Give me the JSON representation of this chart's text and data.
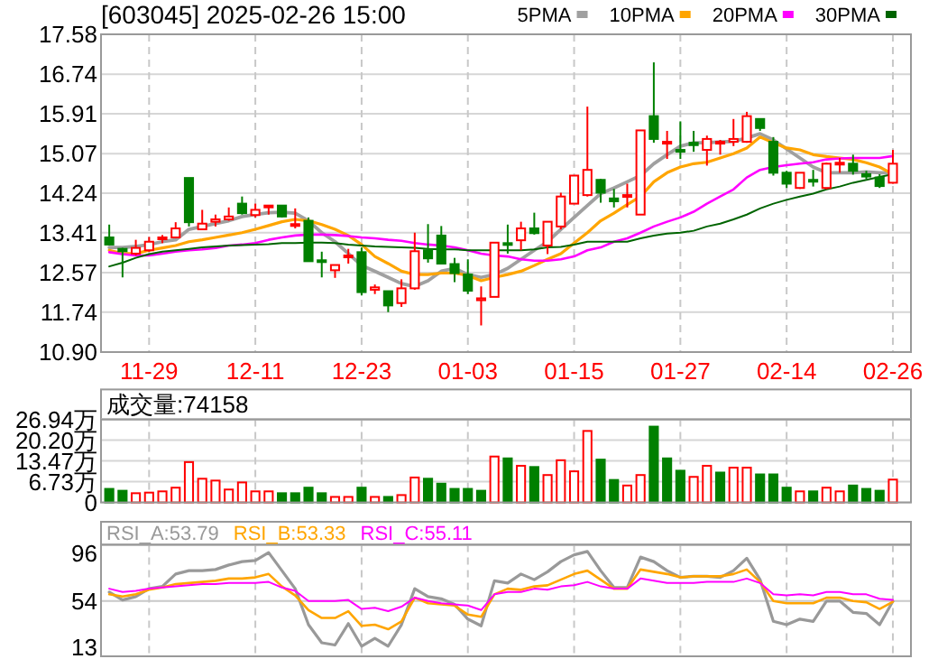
{
  "chart_data": [
    {
      "type": "candlestick",
      "title": "[603045] 2025-02-26 15:00",
      "categories": [
        null,
        null,
        null,
        "11-29",
        null,
        null,
        null,
        null,
        null,
        null,
        null,
        "12-11",
        null,
        null,
        null,
        null,
        null,
        null,
        null,
        "12-23",
        null,
        null,
        null,
        null,
        null,
        null,
        null,
        "01-03",
        null,
        null,
        null,
        null,
        null,
        null,
        null,
        "01-15",
        null,
        null,
        null,
        null,
        null,
        null,
        null,
        "01-27",
        null,
        null,
        null,
        null,
        null,
        null,
        null,
        "02-14",
        null,
        null,
        null,
        null,
        null,
        null,
        null,
        "02-26"
      ],
      "ohlc": [
        [
          13.31,
          13.58,
          13.14,
          13.16
        ],
        [
          13.07,
          13.09,
          12.47,
          13.02
        ],
        [
          12.97,
          13.26,
          12.93,
          13.09
        ],
        [
          13.04,
          13.32,
          13.01,
          13.22
        ],
        [
          13.29,
          13.36,
          13.19,
          13.31
        ],
        [
          13.31,
          13.63,
          13.29,
          13.5
        ],
        [
          14.56,
          14.56,
          13.54,
          13.63
        ],
        [
          13.48,
          13.89,
          13.48,
          13.6
        ],
        [
          13.64,
          13.79,
          13.54,
          13.69
        ],
        [
          13.69,
          13.94,
          13.66,
          13.75
        ],
        [
          14.02,
          14.17,
          13.79,
          13.82
        ],
        [
          13.78,
          14.02,
          13.73,
          13.89
        ],
        [
          13.95,
          13.98,
          13.79,
          13.98
        ],
        [
          13.98,
          13.98,
          13.73,
          13.75
        ],
        [
          13.56,
          13.92,
          13.5,
          13.59
        ],
        [
          13.66,
          13.73,
          12.81,
          12.81
        ],
        [
          12.83,
          13.01,
          12.47,
          12.8
        ],
        [
          12.62,
          12.73,
          12.46,
          12.73
        ],
        [
          12.9,
          13.07,
          12.76,
          12.93
        ],
        [
          13.0,
          13.1,
          12.09,
          12.16
        ],
        [
          12.21,
          12.32,
          12.12,
          12.26
        ],
        [
          12.18,
          12.19,
          11.74,
          11.88
        ],
        [
          11.93,
          12.43,
          11.85,
          12.24
        ],
        [
          12.24,
          13.41,
          12.21,
          13.02
        ],
        [
          13.04,
          13.59,
          12.78,
          12.87
        ],
        [
          13.35,
          13.55,
          12.76,
          12.76
        ],
        [
          12.75,
          12.88,
          12.37,
          12.56
        ],
        [
          12.53,
          12.85,
          12.12,
          12.19
        ],
        [
          11.99,
          12.28,
          11.46,
          12.03
        ],
        [
          12.06,
          13.2,
          12.06,
          13.2
        ],
        [
          13.19,
          13.58,
          12.97,
          13.16
        ],
        [
          13.25,
          13.64,
          13.04,
          13.5
        ],
        [
          13.5,
          13.83,
          13.37,
          13.4
        ],
        [
          13.14,
          13.64,
          12.96,
          13.64
        ],
        [
          13.54,
          14.25,
          13.48,
          14.17
        ],
        [
          14.02,
          14.61,
          14.02,
          14.61
        ],
        [
          14.2,
          16.06,
          14.17,
          14.73
        ],
        [
          14.52,
          14.54,
          14.04,
          14.25
        ],
        [
          14.13,
          14.33,
          13.94,
          14.07
        ],
        [
          14.17,
          14.44,
          13.94,
          14.2
        ],
        [
          13.79,
          15.56,
          13.79,
          15.56
        ],
        [
          15.86,
          16.99,
          15.3,
          15.38
        ],
        [
          15.3,
          15.55,
          14.96,
          15.32
        ],
        [
          15.15,
          15.75,
          14.96,
          15.12
        ],
        [
          15.3,
          15.55,
          15.11,
          15.25
        ],
        [
          15.15,
          15.45,
          14.82,
          15.38
        ],
        [
          15.3,
          15.36,
          15.05,
          15.32
        ],
        [
          15.32,
          15.8,
          15.23,
          15.38
        ],
        [
          15.32,
          15.95,
          15.3,
          15.86
        ],
        [
          15.8,
          15.8,
          15.55,
          15.61
        ],
        [
          15.32,
          15.42,
          14.61,
          14.67
        ],
        [
          14.67,
          14.71,
          14.35,
          14.44
        ],
        [
          14.35,
          14.67,
          14.33,
          14.67
        ],
        [
          14.52,
          14.73,
          14.38,
          14.49
        ],
        [
          14.35,
          14.88,
          14.32,
          14.86
        ],
        [
          14.86,
          14.98,
          14.67,
          14.88
        ],
        [
          14.86,
          15.05,
          14.63,
          14.71
        ],
        [
          14.64,
          14.71,
          14.54,
          14.59
        ],
        [
          14.57,
          14.64,
          14.35,
          14.39
        ],
        [
          14.46,
          15.15,
          14.44,
          14.86
        ]
      ],
      "colors": [
        "#008000",
        "#008000",
        "#ff0000",
        "#ff0000",
        "#ff0000",
        "#ff0000",
        "#008000",
        "#ff0000",
        "#ff0000",
        "#ff0000",
        "#008000",
        "#ff0000",
        "#ff0000",
        "#008000",
        "#ff0000",
        "#008000",
        "#008000",
        "#ff0000",
        "#ff0000",
        "#008000",
        "#ff0000",
        "#008000",
        "#ff0000",
        "#ff0000",
        "#008000",
        "#008000",
        "#008000",
        "#008000",
        "#ff0000",
        "#ff0000",
        "#008000",
        "#ff0000",
        "#008000",
        "#ff0000",
        "#ff0000",
        "#ff0000",
        "#ff0000",
        "#008000",
        "#008000",
        "#ff0000",
        "#ff0000",
        "#008000",
        "#ff0000",
        "#008000",
        "#008000",
        "#ff0000",
        "#ff0000",
        "#ff0000",
        "#ff0000",
        "#008000",
        "#008000",
        "#008000",
        "#ff0000",
        "#008000",
        "#ff0000",
        "#ff0000",
        "#008000",
        "#008000",
        "#008000",
        "#ff0000"
      ],
      "series": [
        {
          "name": "5PMA",
          "type": "line",
          "color": "#a0a0a0",
          "values": [
            13.1,
            13.1,
            13.12,
            13.16,
            13.22,
            13.26,
            13.48,
            13.54,
            13.6,
            13.66,
            13.75,
            13.79,
            13.83,
            13.84,
            13.82,
            13.66,
            13.41,
            13.22,
            12.97,
            12.72,
            12.6,
            12.47,
            12.34,
            12.28,
            12.4,
            12.6,
            12.66,
            12.53,
            12.47,
            12.53,
            12.66,
            12.85,
            13.04,
            13.22,
            13.48,
            13.73,
            13.98,
            14.23,
            14.35,
            14.48,
            14.61,
            14.86,
            15.05,
            15.23,
            15.3,
            15.3,
            15.32,
            15.33,
            15.4,
            15.49,
            15.36,
            15.17,
            14.98,
            14.79,
            14.67,
            14.67,
            14.67,
            14.69,
            14.67,
            14.67
          ]
        },
        {
          "name": "10PMA",
          "type": "line",
          "color": "#ffa500",
          "values": [
            13.04,
            12.97,
            12.97,
            13.04,
            13.09,
            13.14,
            13.22,
            13.26,
            13.31,
            13.36,
            13.41,
            13.48,
            13.56,
            13.64,
            13.69,
            13.66,
            13.58,
            13.48,
            13.35,
            13.16,
            12.91,
            12.76,
            12.6,
            12.53,
            12.53,
            12.56,
            12.56,
            12.51,
            12.4,
            12.47,
            12.53,
            12.6,
            12.72,
            12.85,
            12.97,
            13.19,
            13.41,
            13.66,
            13.82,
            14.0,
            14.17,
            14.48,
            14.67,
            14.79,
            14.86,
            14.89,
            14.98,
            15.07,
            15.19,
            15.42,
            15.3,
            15.19,
            15.15,
            15.05,
            15.01,
            14.98,
            14.95,
            14.88,
            14.79,
            14.64
          ]
        },
        {
          "name": "20PMA",
          "type": "line",
          "color": "#ff00ff",
          "values": [
            13.0,
            12.96,
            12.93,
            12.93,
            12.97,
            13.01,
            13.04,
            13.06,
            13.09,
            13.14,
            13.16,
            13.19,
            13.26,
            13.31,
            13.35,
            13.37,
            13.37,
            13.36,
            13.34,
            13.31,
            13.29,
            13.26,
            13.24,
            13.19,
            13.16,
            13.14,
            13.1,
            13.04,
            12.97,
            12.93,
            12.91,
            12.85,
            12.82,
            12.82,
            12.85,
            12.91,
            13.04,
            13.1,
            13.22,
            13.29,
            13.41,
            13.54,
            13.64,
            13.73,
            13.85,
            14.02,
            14.17,
            14.32,
            14.57,
            14.73,
            14.79,
            14.83,
            14.86,
            14.89,
            14.95,
            14.97,
            14.98,
            14.98,
            14.98,
            15.02
          ]
        },
        {
          "name": "30PMA",
          "type": "line",
          "color": "#006400",
          "values": [
            12.7,
            12.78,
            12.88,
            12.96,
            13.01,
            13.04,
            13.07,
            13.1,
            13.12,
            13.14,
            13.15,
            13.16,
            13.17,
            13.19,
            13.19,
            13.2,
            13.2,
            13.19,
            13.16,
            13.14,
            13.12,
            13.11,
            13.1,
            13.09,
            13.07,
            13.06,
            13.06,
            13.04,
            13.04,
            13.04,
            13.04,
            13.04,
            13.06,
            13.1,
            13.11,
            13.16,
            13.22,
            13.22,
            13.22,
            13.22,
            13.29,
            13.35,
            13.39,
            13.41,
            13.45,
            13.54,
            13.6,
            13.69,
            13.79,
            13.92,
            14.02,
            14.1,
            14.17,
            14.23,
            14.32,
            14.38,
            14.46,
            14.52,
            14.58,
            14.64
          ]
        }
      ],
      "ylim": [
        10.9,
        17.58
      ],
      "yticks": [
        {
          "value": 10.9,
          "label": "10.90"
        },
        11.74,
        12.57,
        13.41,
        14.24,
        15.07,
        15.91,
        16.74,
        17.58
      ],
      "grid": true,
      "legend": "top right"
    },
    {
      "type": "bar",
      "title": "成交量:74158",
      "categories": [
        null,
        null,
        null,
        null,
        null,
        null,
        null,
        null,
        null,
        null,
        null,
        null,
        null,
        null,
        null,
        null,
        null,
        null,
        null,
        null,
        null,
        null,
        null,
        null,
        null,
        null,
        null,
        null,
        null,
        null,
        null,
        null,
        null,
        null,
        null,
        null,
        null,
        null,
        null,
        null,
        null,
        null,
        null,
        null,
        null,
        null,
        null,
        null,
        null,
        null,
        null,
        null,
        null,
        null,
        null,
        null,
        null,
        null,
        null,
        null
      ],
      "values": [
        4.4,
        3.8,
        3.0,
        3.2,
        3.6,
        4.8,
        13.1,
        7.7,
        7.1,
        4.2,
        6.5,
        3.6,
        3.6,
        3.0,
        3.0,
        4.8,
        3.0,
        1.8,
        1.8,
        4.8,
        1.8,
        1.8,
        2.4,
        8.1,
        7.7,
        6.1,
        4.4,
        4.4,
        3.8,
        14.9,
        14.3,
        11.9,
        11.5,
        8.9,
        13.7,
        10.1,
        23.2,
        13.9,
        7.3,
        5.5,
        8.9,
        24.6,
        14.3,
        10.3,
        8.3,
        11.9,
        9.7,
        11.3,
        11.3,
        9.1,
        9.1,
        4.8,
        3.6,
        3.6,
        4.8,
        3.6,
        5.5,
        4.4,
        3.8,
        7.42
      ],
      "colors": [
        "#008000",
        "#008000",
        "#ff0000",
        "#ff0000",
        "#ff0000",
        "#ff0000",
        "#ff0000",
        "#ff0000",
        "#ff0000",
        "#ff0000",
        "#ff0000",
        "#ff0000",
        "#ff0000",
        "#008000",
        "#008000",
        "#008000",
        "#008000",
        "#ff0000",
        "#ff0000",
        "#008000",
        "#ff0000",
        "#008000",
        "#ff0000",
        "#ff0000",
        "#008000",
        "#008000",
        "#008000",
        "#008000",
        "#008000",
        "#ff0000",
        "#008000",
        "#ff0000",
        "#008000",
        "#ff0000",
        "#ff0000",
        "#ff0000",
        "#ff0000",
        "#008000",
        "#008000",
        "#ff0000",
        "#ff0000",
        "#008000",
        "#008000",
        "#008000",
        "#ff0000",
        "#ff0000",
        "#008000",
        "#ff0000",
        "#ff0000",
        "#008000",
        "#008000",
        "#008000",
        "#ff0000",
        "#008000",
        "#ff0000",
        "#ff0000",
        "#008000",
        "#008000",
        "#008000",
        "#ff0000"
      ],
      "ylim": [
        0,
        26.94
      ],
      "yticks": [
        0,
        {
          "value": 6.73,
          "label": "6.73万"
        },
        {
          "value": 13.47,
          "label": "13.47万"
        },
        {
          "value": 20.2,
          "label": "20.20万"
        },
        {
          "value": 26.94,
          "label": "26.94万"
        }
      ],
      "grid": true,
      "tick_labels": "y"
    },
    {
      "type": "line",
      "categories": [
        null,
        null,
        null,
        null,
        null,
        null,
        null,
        null,
        null,
        null,
        null,
        null,
        null,
        null,
        null,
        null,
        null,
        null,
        null,
        null,
        null,
        null,
        null,
        null,
        null,
        null,
        null,
        null,
        null,
        null,
        null,
        null,
        null,
        null,
        null,
        null,
        null,
        null,
        null,
        null,
        null,
        null,
        null,
        null,
        null,
        null,
        null,
        null,
        null,
        null,
        null,
        null,
        null,
        null,
        null,
        null,
        null,
        null,
        null,
        null
      ],
      "series": [
        {
          "name": "RSI_A:53.79",
          "color": "#999999",
          "values": [
            62,
            55,
            58,
            65,
            67,
            78,
            81,
            81,
            82,
            86,
            89,
            90,
            97,
            81,
            65,
            33,
            17,
            15,
            34,
            14,
            21,
            14,
            33,
            65,
            58,
            56,
            51,
            38,
            32,
            72,
            70,
            78,
            73,
            80,
            89,
            95,
            98,
            81,
            66,
            66,
            93,
            89,
            81,
            75,
            76,
            76,
            75,
            81,
            92,
            73,
            36,
            33,
            38,
            36,
            54,
            54,
            44,
            43,
            33,
            53.79
          ]
        },
        {
          "name": "RSI_B:53.33",
          "color": "#ffa500",
          "values": [
            60,
            58,
            60,
            64,
            66,
            69,
            70,
            71,
            72,
            74,
            74,
            75,
            78,
            67,
            59,
            46,
            39,
            39,
            45,
            32,
            33,
            29,
            36,
            57,
            52,
            51,
            50,
            42,
            40,
            60,
            65,
            64,
            67,
            68,
            73,
            78,
            81,
            73,
            65,
            65,
            82,
            80,
            78,
            75,
            76,
            76,
            76,
            78,
            82,
            71,
            54,
            52,
            52,
            52,
            57,
            57,
            54,
            53,
            47,
            53.33
          ]
        },
        {
          "name": "RSI_C:55.11",
          "color": "#ff00ff",
          "values": [
            65,
            62,
            63,
            65,
            66,
            67,
            68,
            69,
            69,
            70,
            70,
            70,
            71,
            66,
            63,
            54,
            54,
            54,
            55,
            47,
            48,
            45,
            49,
            57,
            54,
            52,
            51,
            50,
            46,
            60,
            62,
            62,
            65,
            64,
            67,
            68,
            71,
            67,
            65,
            65,
            74,
            72,
            70,
            70,
            70,
            71,
            71,
            71,
            74,
            70,
            60,
            59,
            60,
            59,
            62,
            62,
            60,
            60,
            56,
            55.11
          ]
        }
      ],
      "ylim": [
        5,
        104
      ],
      "yticks": [
        13,
        54,
        96
      ],
      "ref_lines": [
        {
          "axis": "y",
          "value": 54,
          "color": "#c8c8c8"
        }
      ],
      "grid": "x",
      "tick_labels": "y",
      "legend": "top left"
    }
  ]
}
